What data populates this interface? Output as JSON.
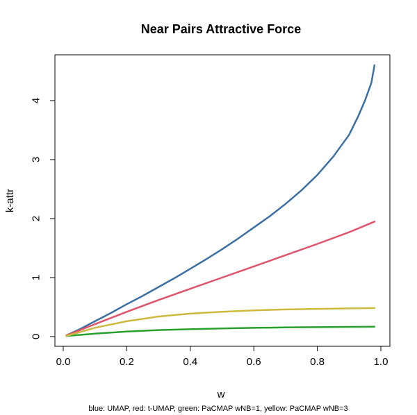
{
  "chart_data": {
    "type": "line",
    "title": "Near Pairs Attractive Force",
    "xlabel": "w",
    "ylabel": "k-attr",
    "caption": "blue: UMAP, red: t-UMAP, green: PaCMAP wNB=1, yellow: PaCMAP wNB=3",
    "xlim": [
      0,
      1
    ],
    "ylim": [
      -0.2,
      4.62
    ],
    "x_ticks": [
      0.0,
      0.2,
      0.4,
      0.6,
      0.8,
      1.0
    ],
    "x_tick_labels": [
      "0.0",
      "0.2",
      "0.4",
      "0.6",
      "0.8",
      "1.0"
    ],
    "y_ticks": [
      0,
      1,
      2,
      3,
      4
    ],
    "y_tick_labels": [
      "0",
      "1",
      "2",
      "3",
      "4"
    ],
    "grid": false,
    "series": [
      {
        "color": "#3b6fa3",
        "x": [
          0.01,
          0.05,
          0.1,
          0.15,
          0.2,
          0.25,
          0.3,
          0.35,
          0.4,
          0.45,
          0.5,
          0.55,
          0.6,
          0.65,
          0.7,
          0.75,
          0.8,
          0.85,
          0.9,
          0.93,
          0.95,
          0.97,
          0.98
        ],
        "values": [
          0.02,
          0.12,
          0.26,
          0.4,
          0.55,
          0.69,
          0.84,
          0.99,
          1.15,
          1.31,
          1.48,
          1.66,
          1.85,
          2.04,
          2.25,
          2.48,
          2.74,
          3.05,
          3.42,
          3.75,
          4.0,
          4.3,
          4.6
        ]
      },
      {
        "color": "#df536b",
        "x": [
          0.01,
          0.1,
          0.2,
          0.3,
          0.4,
          0.5,
          0.6,
          0.7,
          0.8,
          0.9,
          0.98
        ],
        "values": [
          0.02,
          0.21,
          0.42,
          0.62,
          0.81,
          1.0,
          1.19,
          1.38,
          1.57,
          1.77,
          1.95
        ]
      },
      {
        "color": "#28a02c",
        "x": [
          0.01,
          0.1,
          0.2,
          0.3,
          0.4,
          0.5,
          0.6,
          0.7,
          0.8,
          0.9,
          0.98
        ],
        "values": [
          0.01,
          0.05,
          0.085,
          0.11,
          0.125,
          0.138,
          0.148,
          0.155,
          0.16,
          0.165,
          0.168
        ]
      },
      {
        "color": "#cdb93d",
        "x": [
          0.01,
          0.1,
          0.2,
          0.3,
          0.4,
          0.5,
          0.6,
          0.7,
          0.8,
          0.9,
          0.98
        ],
        "values": [
          0.01,
          0.15,
          0.26,
          0.34,
          0.39,
          0.42,
          0.445,
          0.46,
          0.47,
          0.478,
          0.483
        ]
      }
    ]
  }
}
